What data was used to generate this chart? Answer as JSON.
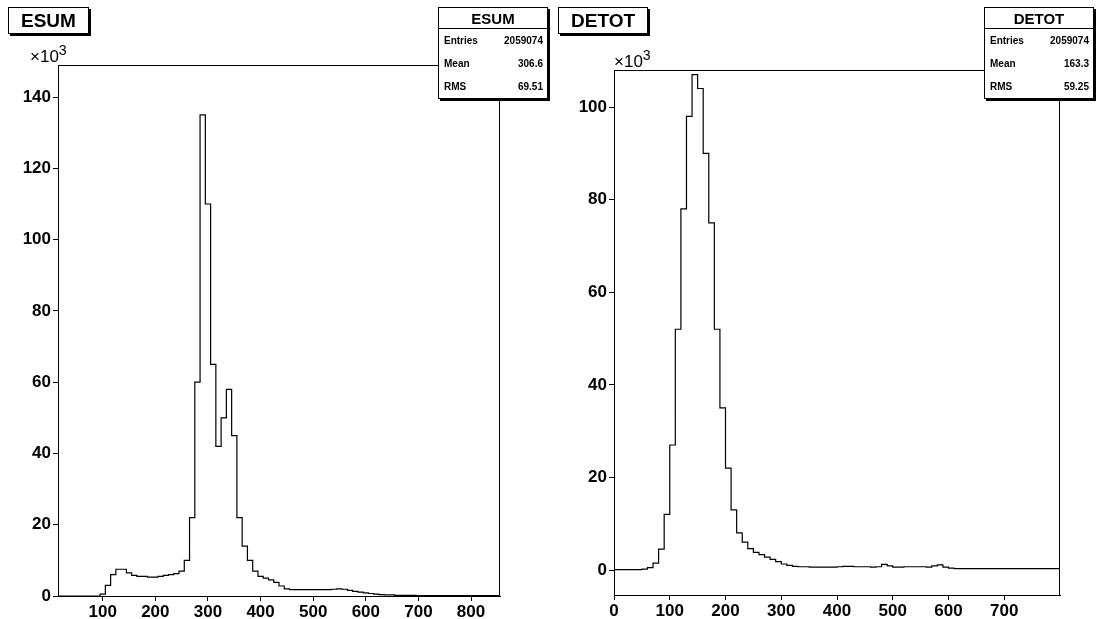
{
  "chart_data": [
    {
      "type": "histogram",
      "title": "ESUM",
      "ylabel": "×10$^{3}$",
      "color": "#000000",
      "annotations": [
        "ESUM",
        "Entries 2059074",
        "Mean 306.6",
        "RMS 69.51"
      ],
      "bins": [
        15,
        25,
        35,
        45,
        55,
        65,
        75,
        85,
        95,
        105,
        115,
        125,
        135,
        145,
        155,
        165,
        175,
        185,
        195,
        205,
        215,
        225,
        235,
        245,
        255,
        265,
        275,
        285,
        295,
        305,
        315,
        325,
        335,
        345,
        355,
        365,
        375,
        385,
        395,
        405,
        415,
        425,
        435,
        445,
        455,
        465,
        475,
        485,
        495,
        505,
        515,
        525,
        535,
        545,
        555,
        565,
        575,
        585,
        595,
        605,
        615,
        625,
        635,
        645,
        655,
        665,
        675,
        685,
        695,
        705,
        715,
        725,
        735,
        745,
        755,
        765,
        775,
        785,
        795,
        805,
        815,
        825,
        835,
        845,
        855
      ],
      "values": [
        0,
        0,
        0,
        0,
        0,
        0,
        0,
        0,
        0.5,
        3,
        6,
        7.5,
        7.5,
        6.5,
        5.8,
        5.5,
        5.5,
        5.3,
        5.3,
        5.5,
        5.8,
        6,
        6.3,
        7,
        10,
        22,
        60,
        135,
        110,
        65,
        42,
        50,
        58,
        45,
        22,
        14,
        10,
        7,
        5.5,
        5,
        4.5,
        3.8,
        2.8,
        2,
        1.8,
        1.8,
        1.8,
        1.8,
        1.8,
        1.8,
        1.8,
        1.8,
        1.9,
        2,
        1.9,
        1.6,
        1.3,
        1.1,
        0.9,
        0.7,
        0.5,
        0.4,
        0.3,
        0.3,
        0.2,
        0.2,
        0.2,
        0.2,
        0.1,
        0.1,
        0.1,
        0.1,
        0.1,
        0.1,
        0.1,
        0.1,
        0.1,
        0.1,
        0.1,
        0.1,
        0.1,
        0.1,
        0.1,
        0.1
      ],
      "xlim": [
        15,
        855
      ],
      "xticks": [
        100,
        200,
        300,
        400,
        500,
        600,
        700,
        800
      ],
      "ylim": [
        0,
        149
      ],
      "yticks": [
        0,
        20,
        40,
        60,
        80,
        100,
        120,
        140
      ]
    },
    {
      "type": "histogram",
      "title": "DETOT",
      "ylabel": "×10$^{3}$",
      "color": "#000000",
      "annotations": [
        "DETOT",
        "Entries 2059074",
        "Mean 163.3",
        "RMS 59.25"
      ],
      "bins": [
        0,
        10,
        20,
        30,
        40,
        50,
        60,
        70,
        80,
        90,
        100,
        110,
        120,
        130,
        140,
        150,
        160,
        170,
        180,
        190,
        200,
        210,
        220,
        230,
        240,
        250,
        260,
        270,
        280,
        290,
        300,
        310,
        320,
        330,
        340,
        350,
        360,
        370,
        380,
        390,
        400,
        410,
        420,
        430,
        440,
        450,
        460,
        470,
        480,
        490,
        500,
        510,
        520,
        530,
        540,
        550,
        560,
        570,
        580,
        590,
        600,
        610,
        620,
        630,
        640,
        650,
        660,
        670,
        680,
        690,
        700,
        710,
        720,
        730,
        740,
        750,
        760,
        770,
        780,
        790,
        800
      ],
      "values": [
        0.1,
        0.1,
        0.1,
        0.1,
        0.1,
        0.2,
        0.5,
        1.5,
        4.5,
        12,
        27,
        52,
        78,
        98,
        107,
        104,
        90,
        75,
        52,
        35,
        22,
        13,
        8,
        6,
        4.6,
        3.8,
        3.3,
        2.8,
        2.3,
        1.8,
        1.3,
        1,
        0.8,
        0.7,
        0.7,
        0.6,
        0.6,
        0.6,
        0.6,
        0.6,
        0.7,
        0.8,
        0.8,
        0.7,
        0.7,
        0.7,
        0.6,
        0.7,
        1.2,
        0.9,
        0.6,
        0.6,
        0.7,
        0.7,
        0.7,
        0.7,
        0.6,
        0.9,
        1.1,
        0.6,
        0.4,
        0.3,
        0.3,
        0.3,
        0.3,
        0.3,
        0.3,
        0.3,
        0.3,
        0.3,
        0.3,
        0.3,
        0.3,
        0.3,
        0.3,
        0.3,
        0.3,
        0.3,
        0.3,
        0.3
      ],
      "xlim": [
        0,
        800
      ],
      "xticks": [
        0,
        100,
        200,
        300,
        400,
        500,
        600,
        700
      ],
      "ylim": [
        -5.4,
        108
      ],
      "yticks": [
        0,
        20,
        40,
        60,
        80,
        100
      ]
    }
  ]
}
